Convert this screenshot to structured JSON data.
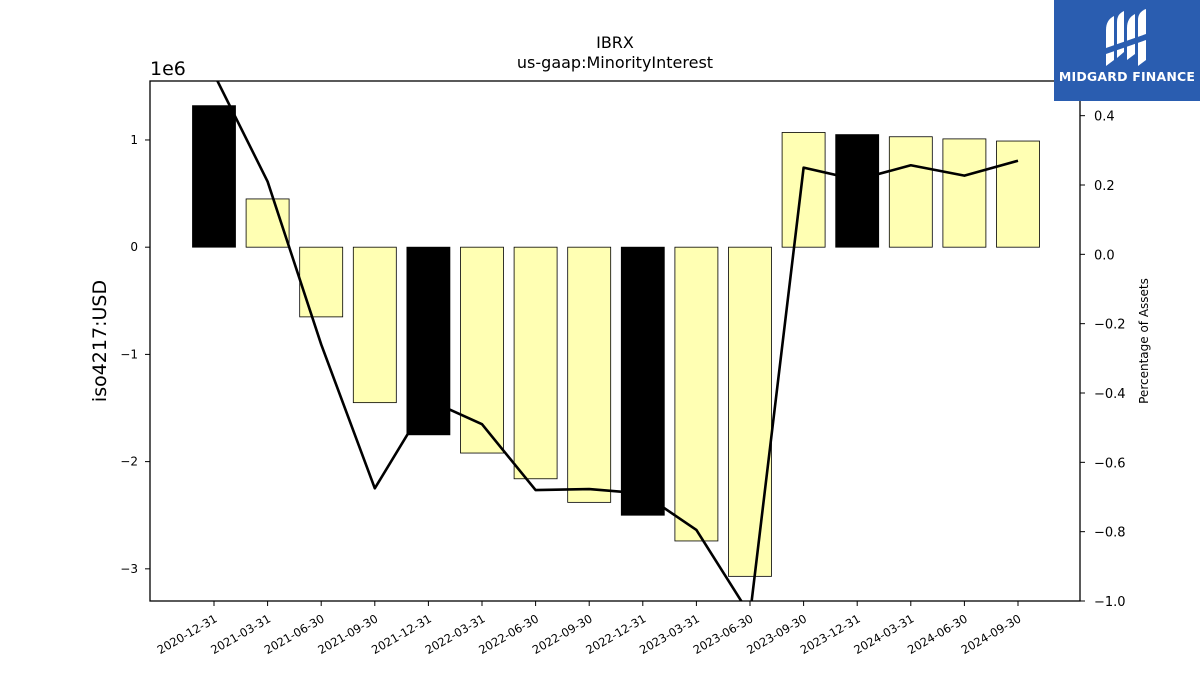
{
  "chart_data": {
    "type": "bar",
    "title": "IBRX",
    "subtitle": "us-gaap:MinorityInterest",
    "ylabel": "iso4217:USD",
    "y2label": "Percentage of Assets",
    "y_scale_label": "1e6",
    "ylim": [
      -3.3,
      1.55
    ],
    "y2lim": [
      -1.0,
      0.5
    ],
    "yticks": [
      -3,
      -2,
      -1,
      0,
      1
    ],
    "yticklabels": [
      "−3",
      "−2",
      "−1",
      "0",
      "1"
    ],
    "y2ticks": [
      -1.0,
      -0.8,
      -0.6,
      -0.4,
      -0.2,
      0.0,
      0.2,
      0.4
    ],
    "y2ticklabels": [
      "−1.0",
      "−0.8",
      "−0.6",
      "−0.4",
      "−0.2",
      "0.0",
      "0.2",
      "0.4"
    ],
    "categories": [
      "2020-12-31",
      "2021-03-31",
      "2021-06-30",
      "2021-09-30",
      "2021-12-31",
      "2022-03-31",
      "2022-06-30",
      "2022-09-30",
      "2022-12-31",
      "2023-03-31",
      "2023-06-30",
      "2023-09-30",
      "2023-12-31",
      "2024-03-31",
      "2024-06-30",
      "2024-09-30"
    ],
    "series": [
      {
        "type": "bar",
        "values": [
          1.32,
          0.45,
          -0.65,
          -1.45,
          -1.75,
          -1.92,
          -2.16,
          -2.38,
          -2.5,
          -2.74,
          -3.07,
          1.07,
          1.05,
          1.03,
          1.01,
          0.99
        ],
        "colors": [
          "#000000",
          "#ffffb3",
          "#ffffb3",
          "#ffffb3",
          "#000000",
          "#ffffb3",
          "#ffffb3",
          "#ffffb3",
          "#000000",
          "#ffffb3",
          "#ffffb3",
          "#ffffb3",
          "#000000",
          "#ffffb3",
          "#ffffb3",
          "#ffffb3"
        ]
      },
      {
        "type": "line",
        "axis": "right",
        "values": [
          0.52,
          0.21,
          -0.26,
          -0.675,
          -0.42,
          -0.49,
          -0.68,
          -0.677,
          -0.69,
          -0.795,
          -1.04,
          0.25,
          0.215,
          0.257,
          0.227,
          0.27
        ],
        "color": "#000000"
      }
    ]
  },
  "logo": {
    "text": "MIDGARD FINANCE",
    "color": "#2a5db0"
  }
}
